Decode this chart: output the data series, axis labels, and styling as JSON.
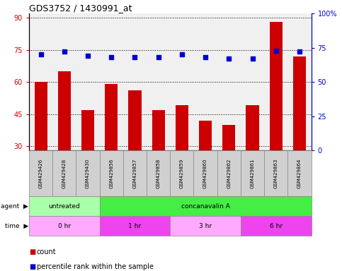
{
  "title": "GDS3752 / 1430991_at",
  "samples": [
    "GSM429426",
    "GSM429428",
    "GSM429430",
    "GSM429856",
    "GSM429857",
    "GSM429858",
    "GSM429859",
    "GSM429860",
    "GSM429862",
    "GSM429861",
    "GSM429863",
    "GSM429864"
  ],
  "count_values": [
    60,
    65,
    47,
    59,
    56,
    47,
    49,
    42,
    40,
    49,
    88,
    72
  ],
  "percentile_values": [
    70,
    72,
    69,
    68,
    68,
    68,
    70,
    68,
    67,
    67,
    73,
    72
  ],
  "left_ylim": [
    28,
    92
  ],
  "left_yticks": [
    30,
    45,
    60,
    75,
    90
  ],
  "right_ylim": [
    0,
    100
  ],
  "right_yticks": [
    0,
    25,
    50,
    75,
    100
  ],
  "right_yticklabels": [
    "0",
    "25",
    "50",
    "75",
    "100%"
  ],
  "bar_color": "#cc0000",
  "dot_color": "#0000cc",
  "grid_color": "black",
  "plot_bg_color": "#f0f0f0",
  "sample_cell_color": "#d0d0d0",
  "agent_row": [
    {
      "label": "untreated",
      "start": 0,
      "end": 3,
      "color": "#aaffaa"
    },
    {
      "label": "concanavalin A",
      "start": 3,
      "end": 12,
      "color": "#44ee44"
    }
  ],
  "time_row": [
    {
      "label": "0 hr",
      "start": 0,
      "end": 3,
      "color": "#ffaaff"
    },
    {
      "label": "1 hr",
      "start": 3,
      "end": 6,
      "color": "#ee44ee"
    },
    {
      "label": "3 hr",
      "start": 6,
      "end": 9,
      "color": "#ffaaff"
    },
    {
      "label": "6 hr",
      "start": 9,
      "end": 12,
      "color": "#ee44ee"
    }
  ],
  "left_tick_color": "#cc0000",
  "right_tick_color": "#0000cc",
  "fig_width": 4.83,
  "fig_height": 3.84,
  "dpi": 100
}
